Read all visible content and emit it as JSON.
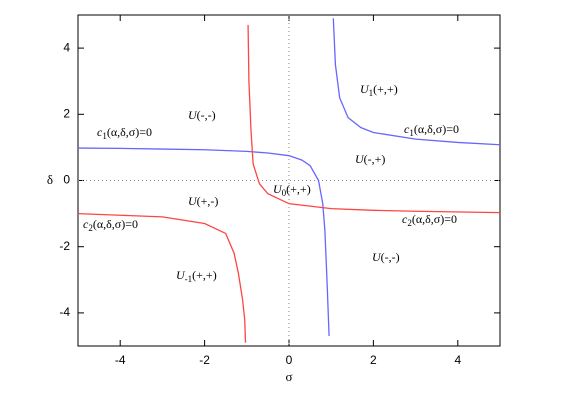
{
  "chart_data": {
    "type": "line",
    "xlabel": "σ",
    "ylabel": "δ",
    "xlim": [
      -5,
      5
    ],
    "ylim": [
      -5,
      5
    ],
    "xticks": [
      -4,
      -2,
      0,
      2,
      4
    ],
    "yticks": [
      -4,
      -2,
      0,
      2,
      4
    ],
    "zero_lines": true,
    "series": [
      {
        "color": "#6666ff",
        "x": [
          -5,
          -4,
          -3,
          -2,
          -1,
          -0.5,
          0,
          0.3,
          0.5,
          0.7,
          0.8,
          0.85,
          0.9,
          0.95
        ],
        "values": [
          0.98,
          0.97,
          0.95,
          0.93,
          0.88,
          0.83,
          0.75,
          0.62,
          0.45,
          0.0,
          -0.7,
          -1.5,
          -3,
          -4.7
        ]
      },
      {
        "color": "#6666ff",
        "x": [
          1.05,
          1.1,
          1.2,
          1.4,
          1.7,
          2,
          3,
          4,
          5
        ],
        "values": [
          4.9,
          3.5,
          2.5,
          1.9,
          1.6,
          1.45,
          1.25,
          1.15,
          1.08
        ]
      },
      {
        "color": "#ff4444",
        "x": [
          -0.97,
          -0.95,
          -0.9,
          -0.85,
          -0.7,
          -0.5,
          0,
          1,
          2,
          3,
          5
        ],
        "values": [
          4.7,
          3,
          1.5,
          0.5,
          -0.1,
          -0.4,
          -0.7,
          -0.85,
          -0.9,
          -0.93,
          -0.97
        ]
      },
      {
        "color": "#ff4444",
        "x": [
          -5,
          -4,
          -3,
          -2,
          -1.5,
          -1.3,
          -1.2,
          -1.1,
          -1.05,
          -1.03
        ],
        "values": [
          -1.0,
          -1.05,
          -1.1,
          -1.3,
          -1.6,
          -2.2,
          -2.8,
          -3.6,
          -4.2,
          -4.9
        ]
      }
    ],
    "annotations": [
      {
        "base": "c",
        "sub": "1",
        "args": "(α,δ,σ)=0"
      },
      {
        "base": "U",
        "args": "(-,-)"
      },
      {
        "base": "U",
        "sub": "1",
        "args": "(+,+)"
      },
      {
        "base": "c",
        "sub": "1",
        "args": "(α,δ,σ)=0"
      },
      {
        "base": "U",
        "args": "(-,+)"
      },
      {
        "base": "U",
        "sub": "0",
        "args": "(+,+)"
      },
      {
        "base": "U",
        "args": "(+,-)"
      },
      {
        "base": "c",
        "sub": "2",
        "args": "(α,δ,σ)=0"
      },
      {
        "base": "c",
        "sub": "2",
        "args": "(α,δ,σ)=0"
      },
      {
        "base": "U",
        "args": "(-,-)"
      },
      {
        "base": "U",
        "sub": "-1",
        "args": "(+,+)"
      }
    ]
  }
}
